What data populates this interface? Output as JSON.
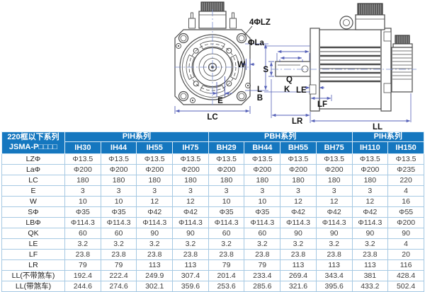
{
  "diagram": {
    "labels": {
      "lz": "4ΦLZ",
      "la": "ΦLa",
      "w": "W",
      "e": "E",
      "lc": "LC",
      "l": "L",
      "b": "B",
      "s": "S",
      "q": "Q",
      "k": "K",
      "le": "LE",
      "lf": "LF",
      "lr": "LR",
      "ll": "LL"
    }
  },
  "table": {
    "corner_header": {
      "line1": "220框以下系列",
      "line2": "JSMA-P□□□□"
    },
    "groups": [
      {
        "label": "PIH系列",
        "span": 4
      },
      {
        "label": "PBH系列",
        "span": 4
      },
      {
        "label": "PIH系列",
        "span": 2
      }
    ],
    "columns": [
      "IH30",
      "IH44",
      "IH55",
      "IH75",
      "BH29",
      "BH44",
      "BH55",
      "BH75",
      "IH110",
      "IH150"
    ],
    "rows": [
      {
        "label": "LZΦ",
        "values": [
          "Φ13.5",
          "Φ13.5",
          "Φ13.5",
          "Φ13.5",
          "Φ13.5",
          "Φ13.5",
          "Φ13.5",
          "Φ13.5",
          "Φ13.5",
          "Φ13.5"
        ]
      },
      {
        "label": "LaΦ",
        "values": [
          "Φ200",
          "Φ200",
          "Φ200",
          "Φ200",
          "Φ200",
          "Φ200",
          "Φ200",
          "Φ200",
          "Φ200",
          "Φ235"
        ]
      },
      {
        "label": "LC",
        "values": [
          "180",
          "180",
          "180",
          "180",
          "180",
          "180",
          "180",
          "180",
          "180",
          "220"
        ]
      },
      {
        "label": "E",
        "values": [
          "3",
          "3",
          "3",
          "3",
          "3",
          "3",
          "3",
          "3",
          "3",
          "4"
        ]
      },
      {
        "label": "W",
        "values": [
          "10",
          "10",
          "12",
          "12",
          "10",
          "10",
          "12",
          "12",
          "12",
          "16"
        ]
      },
      {
        "label": "SΦ",
        "values": [
          "Φ35",
          "Φ35",
          "Φ42",
          "Φ42",
          "Φ35",
          "Φ35",
          "Φ42",
          "Φ42",
          "Φ42",
          "Φ55"
        ]
      },
      {
        "label": "LBΦ",
        "values": [
          "Φ114.3",
          "Φ114.3",
          "Φ114.3",
          "Φ114.3",
          "Φ114.3",
          "Φ114.3",
          "Φ114.3",
          "Φ114.3",
          "Φ114.3",
          "Φ200"
        ]
      },
      {
        "label": "QK",
        "values": [
          "60",
          "60",
          "90",
          "90",
          "60",
          "60",
          "90",
          "90",
          "90",
          "90"
        ]
      },
      {
        "label": "LE",
        "values": [
          "3.2",
          "3.2",
          "3.2",
          "3.2",
          "3.2",
          "3.2",
          "3.2",
          "3.2",
          "3.2",
          "4"
        ]
      },
      {
        "label": "LF",
        "values": [
          "23.8",
          "23.8",
          "23.8",
          "23.8",
          "23.8",
          "23.8",
          "23.8",
          "23.8",
          "23.8",
          "20"
        ]
      },
      {
        "label": "LR",
        "values": [
          "79",
          "79",
          "113",
          "113",
          "79",
          "79",
          "113",
          "113",
          "113",
          "116"
        ]
      },
      {
        "label": "LL(不带煞车)",
        "values": [
          "192.4",
          "222.4",
          "249.9",
          "307.4",
          "201.4",
          "233.4",
          "269.4",
          "343.4",
          "381",
          "428.4"
        ]
      },
      {
        "label": "LL(带煞车)",
        "values": [
          "244.6",
          "274.6",
          "302.1",
          "359.6",
          "253.6",
          "285.6",
          "321.6",
          "395.6",
          "433.2",
          "502.4"
        ]
      }
    ]
  },
  "colors": {
    "header_bg": "#1577bf",
    "table_border": "#a6c9e3",
    "dimension_line": "#5560b8",
    "outline": "#4a4a4a"
  }
}
